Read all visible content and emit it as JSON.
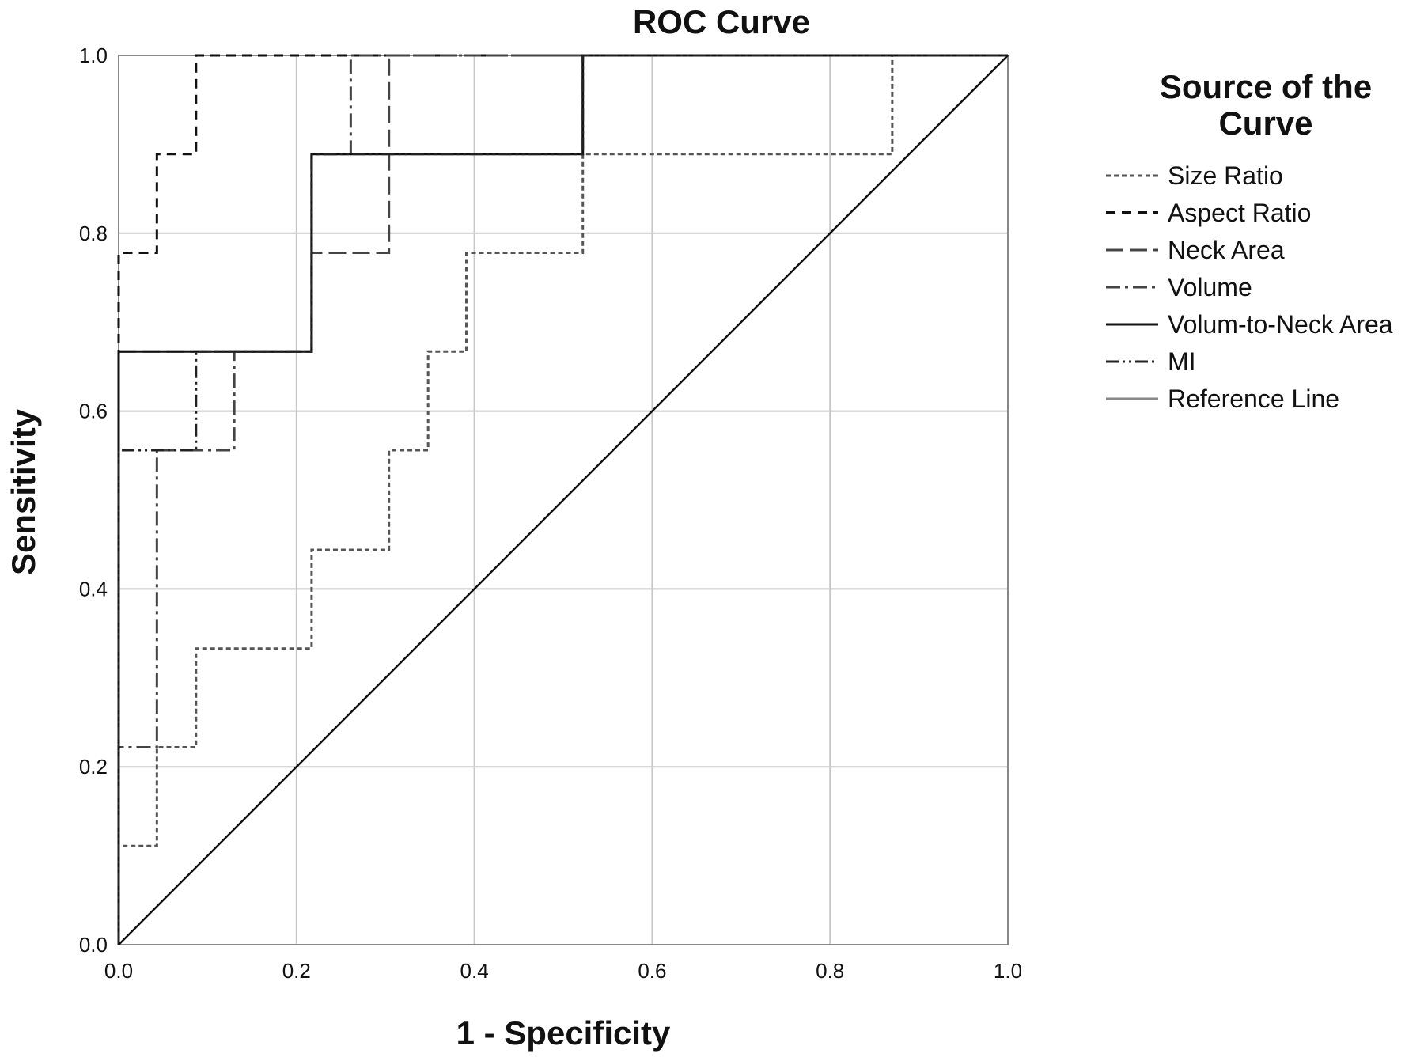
{
  "chart_data": {
    "type": "line",
    "title": "ROC Curve",
    "xlabel": "1 - Specificity",
    "ylabel": "Sensitivity",
    "xlim": [
      0,
      1
    ],
    "ylim": [
      0,
      1
    ],
    "xticks": [
      "0.0",
      "0.2",
      "0.4",
      "0.6",
      "0.8",
      "1.0"
    ],
    "yticks": [
      "0.0",
      "0.2",
      "0.4",
      "0.6",
      "0.8",
      "1.0"
    ],
    "grid": true,
    "legend_title": "Source of the Curve",
    "legend_position": "right",
    "series": [
      {
        "name": "Size Ratio",
        "color": "#555555",
        "dash": "6,4",
        "x": [
          0,
          0,
          0.043,
          0.043,
          0.087,
          0.087,
          0.217,
          0.217,
          0.304,
          0.304,
          0.348,
          0.348,
          0.391,
          0.391,
          0.522,
          0.522,
          0.87,
          0.87,
          1
        ],
        "y": [
          0,
          0.111,
          0.111,
          0.222,
          0.222,
          0.333,
          0.333,
          0.444,
          0.444,
          0.556,
          0.556,
          0.667,
          0.667,
          0.778,
          0.778,
          0.889,
          0.889,
          1,
          1
        ]
      },
      {
        "name": "Aspect Ratio",
        "color": "#111111",
        "dash": "12,8",
        "x": [
          0,
          0,
          0.043,
          0.043,
          0.087,
          0.087,
          1
        ],
        "y": [
          0,
          0.778,
          0.778,
          0.889,
          0.889,
          1,
          1
        ]
      },
      {
        "name": "Neck Area",
        "color": "#444444",
        "dash": "22,8",
        "x": [
          0,
          0,
          0.217,
          0.217,
          0.304,
          0.304,
          1
        ],
        "y": [
          0,
          0.667,
          0.667,
          0.778,
          0.778,
          1,
          1
        ]
      },
      {
        "name": "Volume",
        "color": "#444444",
        "dash": "18,6,4,6",
        "x": [
          0,
          0,
          0.043,
          0.043,
          0.13,
          0.13,
          0.217,
          0.217,
          0.261,
          0.261,
          1
        ],
        "y": [
          0,
          0.222,
          0.222,
          0.556,
          0.556,
          0.667,
          0.667,
          0.889,
          0.889,
          1,
          1
        ]
      },
      {
        "name": "Volum-to-Neck Area",
        "color": "#111111",
        "dash": "",
        "x": [
          0,
          0,
          0.217,
          0.217,
          0.522,
          0.522,
          1
        ],
        "y": [
          0,
          0.667,
          0.667,
          0.889,
          0.889,
          1,
          1
        ]
      },
      {
        "name": "MI",
        "color": "#222222",
        "dash": "16,5,3,5,3,5",
        "x": [
          0,
          0,
          0.087,
          0.087,
          0.217,
          0.217,
          0.522,
          0.522,
          1
        ],
        "y": [
          0,
          0.556,
          0.556,
          0.667,
          0.667,
          0.889,
          0.889,
          1,
          1
        ]
      },
      {
        "name": "Reference Line",
        "color": "#111111",
        "dash": "",
        "x": [
          0,
          1
        ],
        "y": [
          0,
          1
        ]
      }
    ]
  }
}
